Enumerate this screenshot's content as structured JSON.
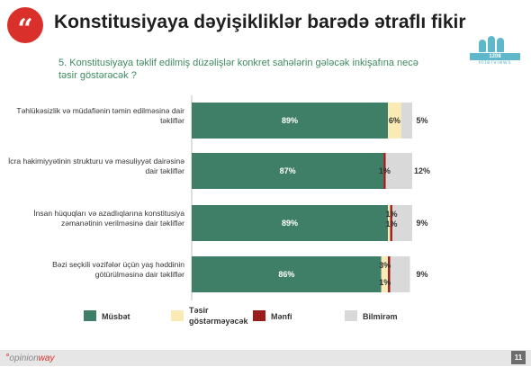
{
  "header": {
    "quote_glyph": "“",
    "title": "Konstitusiyaya dəyişikliklər barədə ətraflı fikir",
    "question": "5. Konstitusiyaya təklif edilmiş düzəlişlər konkret sahələrin gələcək inkişafına necə təsir göstərəcək ?"
  },
  "logo": {
    "count": "1208",
    "word": "Interviews"
  },
  "chart_data": {
    "type": "bar",
    "orientation": "horizontal",
    "stacked": true,
    "percent_scale": true,
    "categories": [
      "Təhlükəsizlik və müdafiənin təmin edilməsinə dair təkliflər",
      "İcra hakimiyyətinin strukturu və məsuliyyət dairəsinə dair təkliflər",
      "İnsan hüquqları və azadlıqlarına konstitusiya zəmanətinin verilməsinə dair təkliflər",
      "Bəzi seçkili vəzifələr üçün yaş həddinin götürülməsinə dair təkliflər"
    ],
    "series": [
      {
        "name": "Müsbət",
        "color": "#3f7f68",
        "values": [
          89,
          87,
          89,
          86
        ]
      },
      {
        "name": "Təsir göstərməyəcək",
        "color": "#faeab5",
        "values": [
          6,
          0,
          1,
          3
        ]
      },
      {
        "name": "Mənfi",
        "color": "#9b1b1b",
        "values": [
          0,
          1,
          1,
          1
        ]
      },
      {
        "name": "Bilmirəm",
        "color": "#d9d9d9",
        "values": [
          5,
          12,
          9,
          9
        ]
      }
    ],
    "data_labels": [
      [
        "89%",
        "6%",
        "",
        "5%"
      ],
      [
        "87%",
        "",
        "1%",
        "12%"
      ],
      [
        "89%",
        "1%",
        "1%",
        "9%"
      ],
      [
        "86%",
        "3%",
        "1%",
        "9%"
      ]
    ]
  },
  "legend": {
    "items": [
      {
        "label": "Müsbət",
        "color": "#3f7f68"
      },
      {
        "label": "Təsir göstərməyəcək",
        "color": "#faeab5"
      },
      {
        "label": "Mənfi",
        "color": "#9b1b1b"
      },
      {
        "label": "Bilmirəm",
        "color": "#d9d9d9"
      }
    ]
  },
  "footer": {
    "brand_prefix": "°",
    "brand": "opinion",
    "brand_suffix": "way",
    "page": "11"
  }
}
